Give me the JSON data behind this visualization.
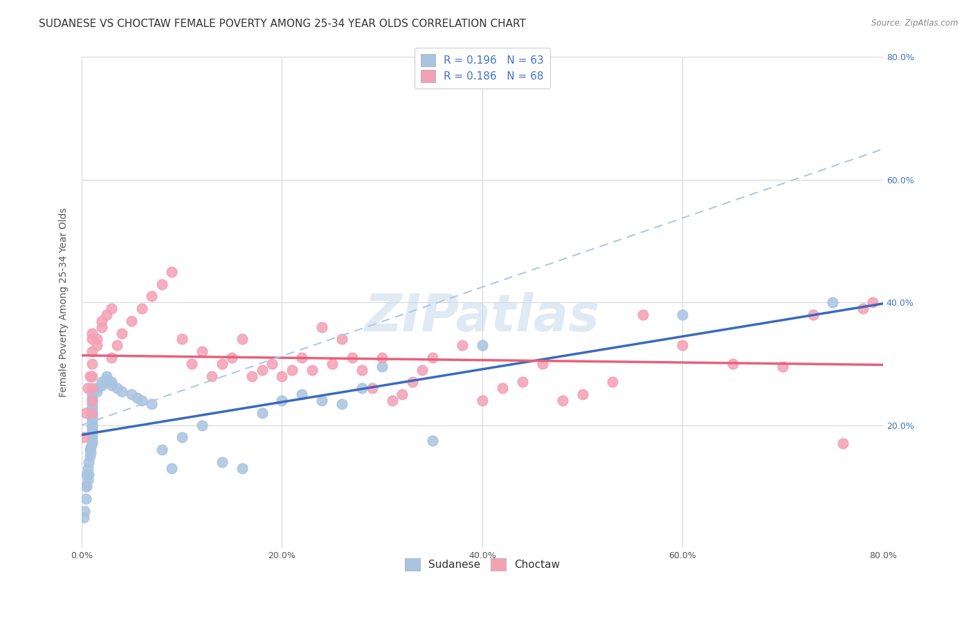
{
  "title": "SUDANESE VS CHOCTAW FEMALE POVERTY AMONG 25-34 YEAR OLDS CORRELATION CHART",
  "source": "Source: ZipAtlas.com",
  "ylabel": "Female Poverty Among 25-34 Year Olds",
  "xlim": [
    0,
    0.8
  ],
  "ylim": [
    0,
    0.8
  ],
  "xticks": [
    0.0,
    0.2,
    0.4,
    0.6,
    0.8
  ],
  "yticks": [
    0.2,
    0.4,
    0.6,
    0.8
  ],
  "ytick_labels_right": [
    "20.0%",
    "40.0%",
    "60.0%",
    "80.0%"
  ],
  "xtick_labels": [
    "0.0%",
    "20.0%",
    "40.0%",
    "60.0%",
    "80.0%"
  ],
  "legend1_label": "R = 0.196   N = 63",
  "legend2_label": "R = 0.186   N = 68",
  "sudanese_color": "#a8c4e0",
  "choctaw_color": "#f4a0b5",
  "sudanese_line_color": "#3a6abf",
  "choctaw_line_color": "#e8607a",
  "dashed_line_color": "#b0c8e0",
  "watermark": "ZIPatlas",
  "watermark_color": "#ccdded",
  "sudanese_x": [
    0.002,
    0.003,
    0.004,
    0.004,
    0.005,
    0.005,
    0.006,
    0.006,
    0.007,
    0.007,
    0.008,
    0.008,
    0.009,
    0.009,
    0.01,
    0.01,
    0.01,
    0.01,
    0.01,
    0.01,
    0.01,
    0.01,
    0.01,
    0.01,
    0.01,
    0.01,
    0.01,
    0.01,
    0.01,
    0.01,
    0.01,
    0.01,
    0.015,
    0.015,
    0.02,
    0.02,
    0.025,
    0.025,
    0.03,
    0.03,
    0.035,
    0.04,
    0.05,
    0.055,
    0.06,
    0.07,
    0.08,
    0.09,
    0.1,
    0.12,
    0.14,
    0.16,
    0.18,
    0.2,
    0.22,
    0.24,
    0.26,
    0.28,
    0.3,
    0.35,
    0.4,
    0.6,
    0.75
  ],
  "sudanese_y": [
    0.05,
    0.06,
    0.08,
    0.1,
    0.1,
    0.12,
    0.11,
    0.13,
    0.12,
    0.14,
    0.15,
    0.16,
    0.155,
    0.165,
    0.17,
    0.175,
    0.18,
    0.185,
    0.19,
    0.195,
    0.2,
    0.2,
    0.205,
    0.21,
    0.215,
    0.22,
    0.225,
    0.23,
    0.235,
    0.24,
    0.245,
    0.25,
    0.255,
    0.26,
    0.265,
    0.27,
    0.275,
    0.28,
    0.27,
    0.265,
    0.26,
    0.255,
    0.25,
    0.245,
    0.24,
    0.235,
    0.16,
    0.13,
    0.18,
    0.2,
    0.14,
    0.13,
    0.22,
    0.24,
    0.25,
    0.24,
    0.235,
    0.26,
    0.295,
    0.175,
    0.33,
    0.38,
    0.4
  ],
  "choctaw_x": [
    0.002,
    0.004,
    0.006,
    0.008,
    0.01,
    0.01,
    0.01,
    0.01,
    0.01,
    0.01,
    0.01,
    0.01,
    0.015,
    0.015,
    0.02,
    0.02,
    0.025,
    0.03,
    0.03,
    0.035,
    0.04,
    0.05,
    0.06,
    0.07,
    0.08,
    0.09,
    0.1,
    0.11,
    0.12,
    0.13,
    0.14,
    0.15,
    0.16,
    0.17,
    0.18,
    0.19,
    0.2,
    0.21,
    0.22,
    0.23,
    0.24,
    0.25,
    0.26,
    0.27,
    0.28,
    0.29,
    0.3,
    0.31,
    0.32,
    0.33,
    0.34,
    0.35,
    0.38,
    0.4,
    0.42,
    0.44,
    0.46,
    0.48,
    0.5,
    0.53,
    0.56,
    0.6,
    0.65,
    0.7,
    0.73,
    0.76,
    0.78,
    0.79
  ],
  "choctaw_y": [
    0.18,
    0.22,
    0.26,
    0.28,
    0.22,
    0.24,
    0.26,
    0.28,
    0.3,
    0.32,
    0.34,
    0.35,
    0.33,
    0.34,
    0.36,
    0.37,
    0.38,
    0.39,
    0.31,
    0.33,
    0.35,
    0.37,
    0.39,
    0.41,
    0.43,
    0.45,
    0.34,
    0.3,
    0.32,
    0.28,
    0.3,
    0.31,
    0.34,
    0.28,
    0.29,
    0.3,
    0.28,
    0.29,
    0.31,
    0.29,
    0.36,
    0.3,
    0.34,
    0.31,
    0.29,
    0.26,
    0.31,
    0.24,
    0.25,
    0.27,
    0.29,
    0.31,
    0.33,
    0.24,
    0.26,
    0.27,
    0.3,
    0.24,
    0.25,
    0.27,
    0.38,
    0.33,
    0.3,
    0.295,
    0.38,
    0.17,
    0.39,
    0.4
  ],
  "sudanese_R": 0.196,
  "sudanese_N": 63,
  "choctaw_R": 0.186,
  "choctaw_N": 68,
  "background_color": "#ffffff",
  "grid_color": "#d8d8d8",
  "title_fontsize": 11,
  "axis_label_fontsize": 10,
  "tick_fontsize": 9,
  "legend_fontsize": 11
}
